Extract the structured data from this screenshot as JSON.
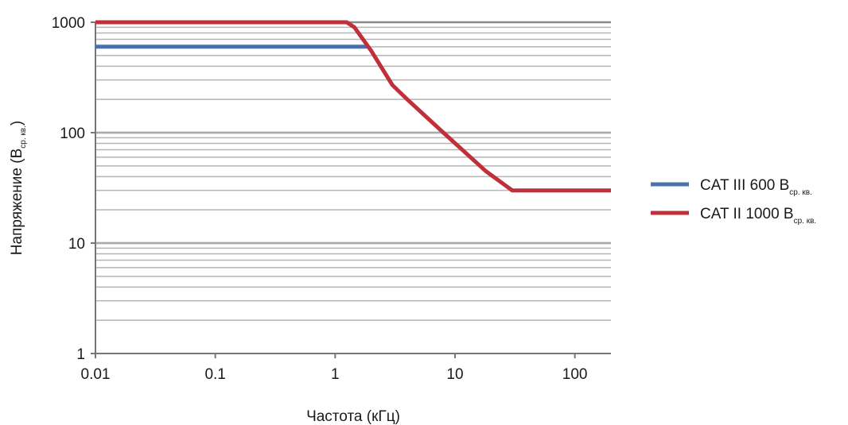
{
  "chart_data": {
    "type": "line",
    "xlabel": "Частота (кГц)",
    "ylabel": {
      "main": "Напряжение (В",
      "sub": "ср. кв.",
      "close": ")"
    },
    "x_scale": "log",
    "y_scale": "log",
    "xlim": [
      0.01,
      200
    ],
    "ylim": [
      1,
      1000
    ],
    "x_ticks": [
      {
        "value": 0.01,
        "label": "0.01"
      },
      {
        "value": 0.1,
        "label": "0.1"
      },
      {
        "value": 1,
        "label": "1"
      },
      {
        "value": 10,
        "label": "10"
      },
      {
        "value": 100,
        "label": "100"
      }
    ],
    "y_ticks": [
      {
        "value": 1,
        "label": "1"
      },
      {
        "value": 10,
        "label": "10"
      },
      {
        "value": 100,
        "label": "100"
      },
      {
        "value": 1000,
        "label": "1000"
      }
    ],
    "grid": true,
    "legend_position": "right",
    "series": [
      {
        "name": "CAT III 600 В",
        "name_sub": "ср. кв.",
        "color": "#4a72a8",
        "points": [
          [
            0.01,
            600
          ],
          [
            1.9,
            600
          ]
        ]
      },
      {
        "name": "CAT II 1000 В",
        "name_sub": "ср. кв.",
        "color": "#c0303a",
        "points": [
          [
            0.01,
            1000
          ],
          [
            1.25,
            1000
          ],
          [
            1.45,
            900
          ],
          [
            2.0,
            550
          ],
          [
            3.0,
            270
          ],
          [
            4.0,
            200
          ],
          [
            8.0,
            100
          ],
          [
            18.0,
            45
          ],
          [
            30.0,
            30
          ],
          [
            200,
            30
          ]
        ]
      }
    ]
  }
}
